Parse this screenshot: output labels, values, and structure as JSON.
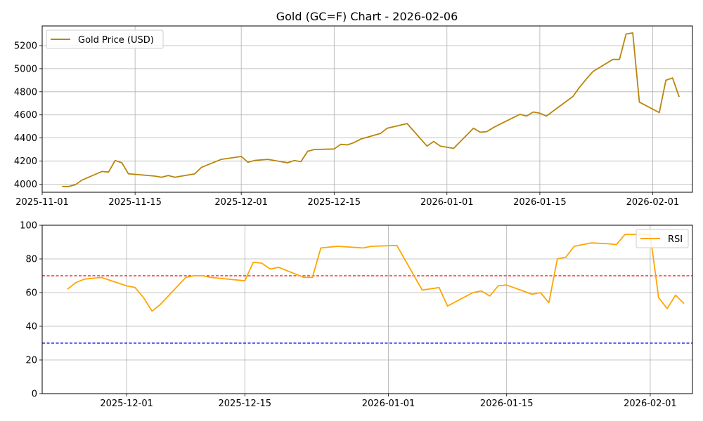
{
  "chart_data": [
    {
      "type": "line",
      "title": "Gold (GC=F) Chart - 2026-02-06",
      "xlabel": "",
      "ylabel": "",
      "xlim": [
        "2025-11-01",
        "2026-02-07"
      ],
      "ylim": [
        3930,
        5370
      ],
      "x_ticks": [
        "2025-11-01",
        "2025-11-15",
        "2025-12-01",
        "2025-12-15",
        "2026-01-01",
        "2026-01-15",
        "2026-02-01"
      ],
      "y_ticks": [
        4000,
        4200,
        4400,
        4600,
        4800,
        5000,
        5200
      ],
      "grid": true,
      "legend_position": "upper-left",
      "series": [
        {
          "name": "Gold Price (USD)",
          "color": "#b8860b",
          "x": [
            "2025-11-04",
            "2025-11-05",
            "2025-11-06",
            "2025-11-07",
            "2025-11-10",
            "2025-11-11",
            "2025-11-12",
            "2025-11-13",
            "2025-11-14",
            "2025-11-17",
            "2025-11-18",
            "2025-11-19",
            "2025-11-20",
            "2025-11-21",
            "2025-11-24",
            "2025-11-25",
            "2025-11-28",
            "2025-12-01",
            "2025-12-02",
            "2025-12-03",
            "2025-12-04",
            "2025-12-05",
            "2025-12-08",
            "2025-12-09",
            "2025-12-10",
            "2025-12-11",
            "2025-12-12",
            "2025-12-15",
            "2025-12-16",
            "2025-12-17",
            "2025-12-18",
            "2025-12-19",
            "2025-12-22",
            "2025-12-23",
            "2025-12-26",
            "2025-12-29",
            "2025-12-30",
            "2025-12-31",
            "2026-01-02",
            "2026-01-05",
            "2026-01-06",
            "2026-01-07",
            "2026-01-08",
            "2026-01-09",
            "2026-01-12",
            "2026-01-13",
            "2026-01-14",
            "2026-01-15",
            "2026-01-16",
            "2026-01-20",
            "2026-01-21",
            "2026-01-22",
            "2026-01-23",
            "2026-01-26",
            "2026-01-27",
            "2026-01-28",
            "2026-01-29",
            "2026-01-30",
            "2026-02-02",
            "2026-02-03",
            "2026-02-04",
            "2026-02-05"
          ],
          "y": [
            3980,
            3980,
            3995,
            4035,
            4110,
            4105,
            4205,
            4185,
            4090,
            4075,
            4070,
            4060,
            4075,
            4060,
            4090,
            4145,
            4215,
            4240,
            4190,
            4205,
            4210,
            4215,
            4185,
            4205,
            4195,
            4285,
            4300,
            4305,
            4345,
            4340,
            4360,
            4390,
            4440,
            4485,
            4525,
            4330,
            4370,
            4330,
            4310,
            4485,
            4450,
            4455,
            4490,
            4520,
            4605,
            4590,
            4625,
            4615,
            4590,
            4760,
            4840,
            4910,
            4975,
            5080,
            5080,
            5300,
            5310,
            4710,
            4620,
            4900,
            4920,
            4755
          ]
        }
      ]
    },
    {
      "type": "line",
      "title": "",
      "xlabel": "",
      "ylabel": "",
      "xlim": [
        "2025-11-21",
        "2026-02-06"
      ],
      "ylim": [
        0,
        100
      ],
      "x_ticks": [
        "2025-12-01",
        "2025-12-15",
        "2026-01-01",
        "2026-01-15",
        "2026-02-01"
      ],
      "y_ticks": [
        0,
        20,
        40,
        60,
        80,
        100
      ],
      "grid": true,
      "legend_position": "upper-right",
      "reference_lines": [
        {
          "y": 70,
          "color": "#ff0000",
          "style": "dashed"
        },
        {
          "y": 30,
          "color": "#0000ff",
          "style": "dashed"
        }
      ],
      "series": [
        {
          "name": "RSI",
          "color": "#ffa500",
          "x": [
            "2025-11-24",
            "2025-11-25",
            "2025-11-26",
            "2025-11-28",
            "2025-12-01",
            "2025-12-02",
            "2025-12-03",
            "2025-12-04",
            "2025-12-05",
            "2025-12-08",
            "2025-12-09",
            "2025-12-10",
            "2025-12-11",
            "2025-12-15",
            "2025-12-16",
            "2025-12-17",
            "2025-12-18",
            "2025-12-19",
            "2025-12-22",
            "2025-12-23",
            "2025-12-24",
            "2025-12-26",
            "2025-12-29",
            "2025-12-30",
            "2026-01-02",
            "2026-01-05",
            "2026-01-07",
            "2026-01-08",
            "2026-01-11",
            "2026-01-12",
            "2026-01-13",
            "2026-01-14",
            "2026-01-15",
            "2026-01-18",
            "2026-01-19",
            "2026-01-20",
            "2026-01-21",
            "2026-01-22",
            "2026-01-23",
            "2026-01-25",
            "2026-01-27",
            "2026-01-28",
            "2026-01-29",
            "2026-02-01",
            "2026-02-02",
            "2026-02-03",
            "2026-02-04",
            "2026-02-05"
          ],
          "y": [
            62,
            66,
            68,
            69,
            64,
            63,
            57,
            49,
            53,
            69,
            70,
            70,
            69,
            67,
            78,
            77.5,
            74,
            75,
            69,
            69,
            86.5,
            87.5,
            86.5,
            87.5,
            88,
            61.5,
            63,
            52,
            60,
            61,
            58,
            64,
            64.5,
            59,
            60,
            54,
            80,
            81,
            87.5,
            89.5,
            89,
            88.5,
            94.5,
            94.5,
            57,
            50.5,
            58.5,
            53.5
          ]
        }
      ]
    }
  ]
}
